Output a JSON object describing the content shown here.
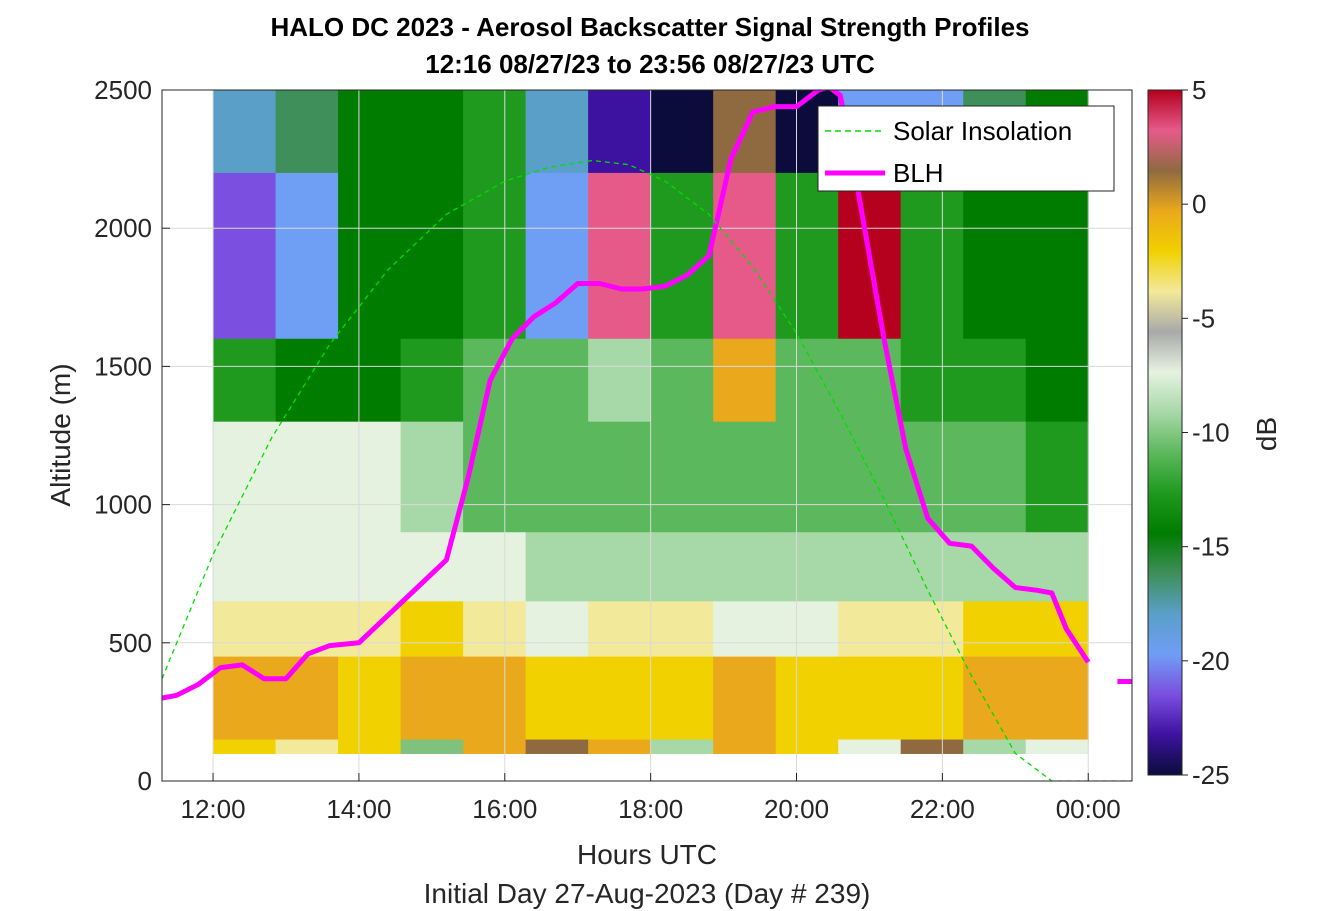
{
  "chart_data": {
    "type": "heatmap",
    "title": "HALO DC 2023 - Aerosol Backscatter Signal Strength Profiles",
    "subtitle": "12:16 08/27/23 to 23:56 08/27/23  UTC",
    "xlabel": "Hours UTC",
    "ylabel": "Altitude (m)",
    "footer": "Initial Day 27-Aug-2023 (Day # 239)",
    "x_tick_labels": [
      "12:00",
      "14:00",
      "16:00",
      "18:00",
      "20:00",
      "22:00",
      "00:00"
    ],
    "x_tick_hours": [
      12,
      14,
      16,
      18,
      20,
      22,
      24
    ],
    "xlim_hours": [
      11.3,
      24.6
    ],
    "y_ticks": [
      0,
      500,
      1000,
      1500,
      2000,
      2500
    ],
    "ylim": [
      0,
      2500
    ],
    "colorbar": {
      "label": "dB",
      "range": [
        -25,
        5
      ],
      "ticks": [
        5,
        0,
        -5,
        -10,
        -15,
        -20,
        -25
      ],
      "colors": [
        "#0b0c3c",
        "#3d12a0",
        "#7b4fe0",
        "#6f9ef5",
        "#5a9fc8",
        "#3f8f5a",
        "#007c00",
        "#1f9a1f",
        "#5cb85c",
        "#a7d8a7",
        "#e6f2e0",
        "#a9a9a9",
        "#f3e99a",
        "#f1d100",
        "#eaa81c",
        "#8f6a40",
        "#e65a8a",
        "#b5001e"
      ]
    },
    "grid": true,
    "legend_placement": "top-right",
    "legend": [
      "Solar Insolation",
      "BLH"
    ],
    "series": [
      {
        "name": "BLH",
        "color": "#ff00ff",
        "x_hours": [
          11.3,
          11.5,
          11.8,
          12.1,
          12.4,
          12.7,
          13.0,
          13.3,
          13.6,
          14.0,
          14.4,
          14.8,
          15.2,
          15.5,
          15.8,
          16.1,
          16.4,
          16.7,
          17.0,
          17.3,
          17.6,
          17.9,
          18.2,
          18.5,
          18.8,
          19.1,
          19.4,
          19.7,
          20.0,
          20.3,
          20.45,
          20.6,
          20.8,
          21.0,
          21.2,
          21.5,
          21.8,
          22.1,
          22.4,
          22.7,
          23.0,
          23.3,
          23.5,
          23.7,
          24.0
        ],
        "y_m": [
          300,
          310,
          350,
          410,
          420,
          370,
          370,
          460,
          490,
          500,
          600,
          700,
          800,
          1100,
          1450,
          1600,
          1680,
          1730,
          1800,
          1800,
          1780,
          1780,
          1790,
          1830,
          1900,
          2250,
          2420,
          2440,
          2440,
          2500,
          2510,
          2480,
          2200,
          1900,
          1600,
          1200,
          950,
          860,
          850,
          770,
          700,
          690,
          680,
          550,
          430
        ]
      },
      {
        "name": "BLH",
        "color": "#ff00ff",
        "x_hours": [
          24.4,
          24.6
        ],
        "y_m": [
          360,
          360
        ]
      },
      {
        "name": "Solar Insolation",
        "color": "#00dd00",
        "style": "dashed",
        "x_hours": [
          11.3,
          12.0,
          12.8,
          13.6,
          14.4,
          15.2,
          16.0,
          16.6,
          17.2,
          17.7,
          18.2,
          18.8,
          19.4,
          20.0,
          20.6,
          21.2,
          21.8,
          22.4,
          23.0,
          23.5,
          23.9,
          24.6
        ],
        "y_m": [
          370,
          820,
          1240,
          1580,
          1850,
          2050,
          2170,
          2220,
          2245,
          2230,
          2170,
          2050,
          1860,
          1620,
          1330,
          1020,
          690,
          380,
          100,
          0,
          0,
          0
        ]
      }
    ],
    "heatmap": {
      "x_range_hours": [
        12.0,
        24.0
      ],
      "bands": [
        {
          "y_m": [
            2200,
            2500
          ],
          "profile": [
            "#5a9fc8",
            "#3f8f5a",
            "#007c00",
            "#007c00",
            "#1f9a1f",
            "#5a9fc8",
            "#3d12a0",
            "#0b0c3c",
            "#8f6a40",
            "#0b0c3c",
            "#6f9ef5",
            "#6f9ef5",
            "#3f8f5a",
            "#007c00"
          ]
        },
        {
          "y_m": [
            1600,
            2200
          ],
          "profile": [
            "#7b4fe0",
            "#6f9ef5",
            "#007c00",
            "#007c00",
            "#1f9a1f",
            "#6f9ef5",
            "#e65a8a",
            "#1f9a1f",
            "#e65a8a",
            "#1f9a1f",
            "#b5001e",
            "#1f9a1f",
            "#007c00",
            "#007c00"
          ]
        },
        {
          "y_m": [
            1300,
            1600
          ],
          "profile": [
            "#1f9a1f",
            "#007c00",
            "#007c00",
            "#1f9a1f",
            "#5cb85c",
            "#5cb85c",
            "#a7d8a7",
            "#5cb85c",
            "#eaa81c",
            "#5cb85c",
            "#5cb85c",
            "#1f9a1f",
            "#1f9a1f",
            "#007c00"
          ]
        },
        {
          "y_m": [
            900,
            1300
          ],
          "profile": [
            "#e6f2e0",
            "#e6f2e0",
            "#e6f2e0",
            "#a7d8a7",
            "#5cb85c",
            "#5cb85c",
            "#5cb85c",
            "#5cb85c",
            "#5cb85c",
            "#5cb85c",
            "#5cb85c",
            "#5cb85c",
            "#5cb85c",
            "#1f9a1f"
          ]
        },
        {
          "y_m": [
            650,
            900
          ],
          "profile": [
            "#e6f2e0",
            "#e6f2e0",
            "#e6f2e0",
            "#e6f2e0",
            "#e6f2e0",
            "#a7d8a7",
            "#a7d8a7",
            "#a7d8a7",
            "#a7d8a7",
            "#a7d8a7",
            "#a7d8a7",
            "#a7d8a7",
            "#a7d8a7",
            "#a7d8a7"
          ]
        },
        {
          "y_m": [
            450,
            650
          ],
          "profile": [
            "#f3e99a",
            "#f3e99a",
            "#f3e99a",
            "#f1d100",
            "#f3e99a",
            "#e6f2e0",
            "#f3e99a",
            "#f3e99a",
            "#e6f2e0",
            "#e6f2e0",
            "#f3e99a",
            "#f3e99a",
            "#f1d100",
            "#f1d100"
          ]
        },
        {
          "y_m": [
            150,
            450
          ],
          "profile": [
            "#eaa81c",
            "#eaa81c",
            "#f1d100",
            "#eaa81c",
            "#eaa81c",
            "#f1d100",
            "#f1d100",
            "#f1d100",
            "#eaa81c",
            "#f1d100",
            "#f1d100",
            "#f1d100",
            "#eaa81c",
            "#eaa81c"
          ]
        },
        {
          "y_m": [
            100,
            150
          ],
          "profile": [
            "#f1d100",
            "#f3e99a",
            "#f1d100",
            "#7ec27e",
            "#eaa81c",
            "#8f6a40",
            "#eaa81c",
            "#a7d8a7",
            "#eaa81c",
            "#f1d100",
            "#e6f2e0",
            "#8f6a40",
            "#a7d8a7",
            "#e6f2e0"
          ]
        }
      ]
    }
  }
}
